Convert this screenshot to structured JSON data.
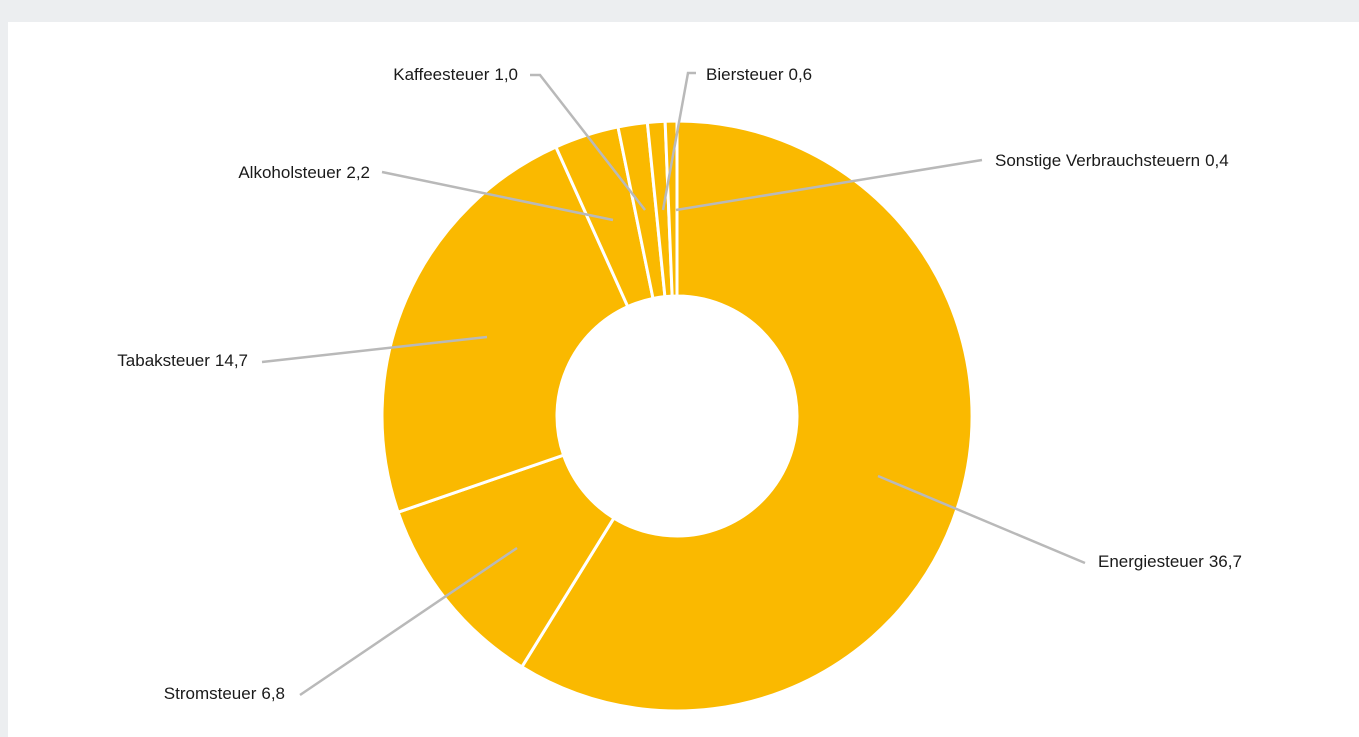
{
  "chart_data": {
    "type": "donut",
    "categories": [
      "Energiesteuer",
      "Stromsteuer",
      "Tabaksteuer",
      "Alkoholsteuer",
      "Kaffeesteuer",
      "Biersteuer",
      "Sonstige Verbrauchsteuern"
    ],
    "values": [
      36.7,
      6.8,
      14.7,
      2.2,
      1.0,
      0.6,
      0.4
    ],
    "value_labels": [
      "36,7",
      "6,8",
      "14,7",
      "2,2",
      "1,0",
      "0,6",
      "0,4"
    ],
    "color": "#fab900"
  }
}
